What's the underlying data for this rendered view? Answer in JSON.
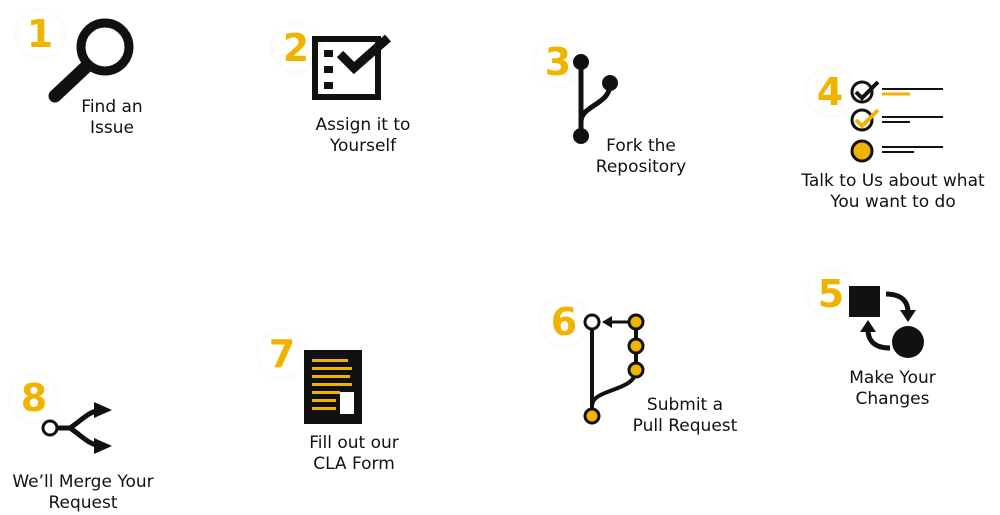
{
  "steps": [
    {
      "number": "1",
      "line1": "Find an",
      "line2": "Issue",
      "icon": "magnifier-icon"
    },
    {
      "number": "2",
      "line1": "Assign it to",
      "line2": "Yourself",
      "icon": "checklist-icon"
    },
    {
      "number": "3",
      "line1": "Fork the",
      "line2": "Repository",
      "icon": "fork-icon"
    },
    {
      "number": "4",
      "line1": "Talk to Us about what",
      "line2": "You want to do",
      "icon": "todo-list-icon"
    },
    {
      "number": "5",
      "line1": "Make Your",
      "line2": "Changes",
      "icon": "changes-icon"
    },
    {
      "number": "6",
      "line1": "Submit a",
      "line2": "Pull Request",
      "icon": "pull-request-icon"
    },
    {
      "number": "7",
      "line1": "Fill out our",
      "line2": "CLA Form",
      "icon": "form-icon"
    },
    {
      "number": "8",
      "line1": "We’ll Merge Your",
      "line2": "Request",
      "icon": "merge-icon"
    }
  ],
  "colors": {
    "accent": "#f0b400",
    "ink": "#111111"
  }
}
